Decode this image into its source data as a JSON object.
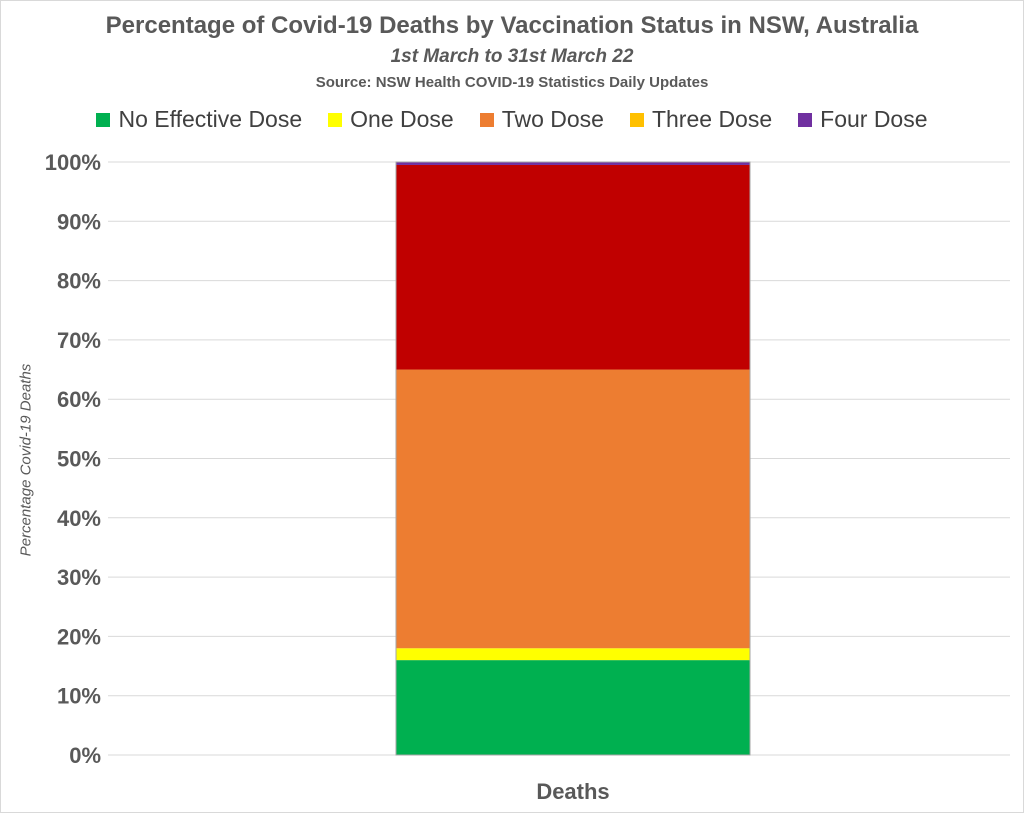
{
  "chart_data": {
    "type": "bar",
    "stacked": true,
    "percent_stacked": true,
    "title": "Percentage of Covid-19 Deaths by Vaccination Status in NSW, Australia",
    "subtitle": "1st March to 31st March 22",
    "source": "Source: NSW Health COVID-19 Statistics Daily Updates",
    "xlabel": "",
    "ylabel": "Percentage Covid-19 Deaths",
    "categories": [
      "Deaths"
    ],
    "ylim": [
      0,
      100
    ],
    "yticks": [
      "0%",
      "10%",
      "20%",
      "30%",
      "40%",
      "50%",
      "60%",
      "70%",
      "80%",
      "90%",
      "100%"
    ],
    "grid": true,
    "legend_position": "top",
    "series": [
      {
        "name": "No Effective Dose",
        "values": [
          16
        ],
        "color": "#00B050",
        "legend": true
      },
      {
        "name": "One Dose",
        "values": [
          2
        ],
        "color": "#FFFF00",
        "legend": true
      },
      {
        "name": "Two Dose",
        "values": [
          47
        ],
        "color": "#ED7D31",
        "legend": true
      },
      {
        "name": "",
        "values": [
          34.5
        ],
        "color": "#C00000",
        "legend": false
      },
      {
        "name": "Four Dose",
        "values": [
          0.5
        ],
        "color": "#7030A0",
        "legend": true
      }
    ],
    "legend": [
      {
        "name": "No Effective Dose",
        "color": "#00B050"
      },
      {
        "name": "One Dose",
        "color": "#FFFF00"
      },
      {
        "name": "Two Dose",
        "color": "#ED7D31"
      },
      {
        "name": "Three Dose",
        "color": "#FFC000"
      },
      {
        "name": "Four Dose",
        "color": "#7030A0"
      }
    ]
  }
}
